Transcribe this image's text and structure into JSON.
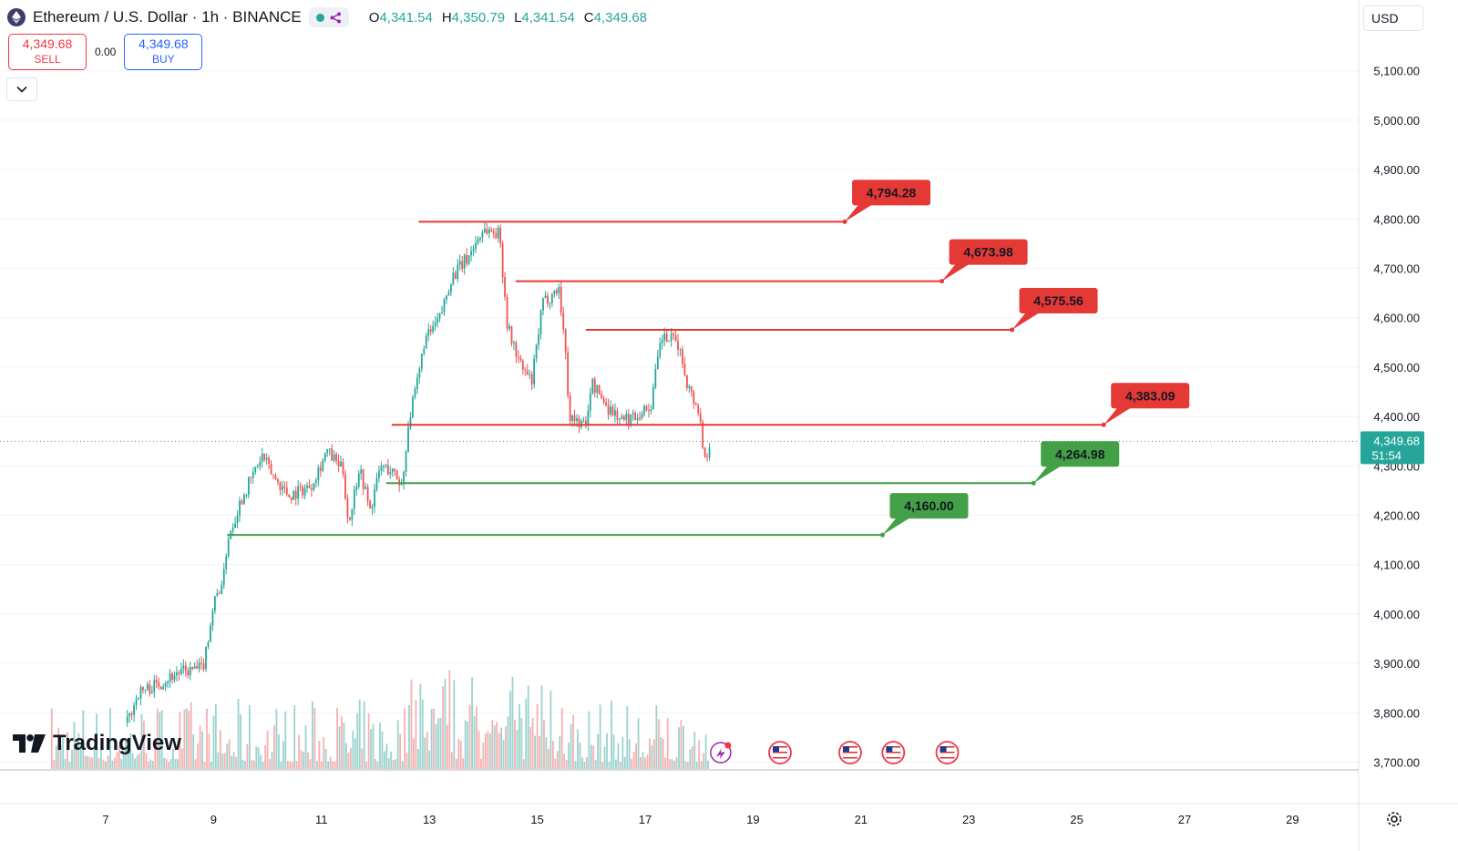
{
  "header": {
    "title": "Ethereum / U.S. Dollar · 1h · BINANCE",
    "open_label": "O",
    "open": "4,341.54",
    "high_label": "H",
    "high": "4,350.79",
    "low_label": "L",
    "low": "4,341.54",
    "close_label": "C",
    "close": "4,349.68"
  },
  "trade": {
    "sell_price": "4,349.68",
    "sell_label": "SELL",
    "spread": "0.00",
    "buy_price": "4,349.68",
    "buy_label": "BUY"
  },
  "currency": "USD",
  "brand": "TradingView",
  "price_label": {
    "price": "4,349.68",
    "countdown": "51:54"
  },
  "colors": {
    "up": "#26a69a",
    "down": "#ef5350",
    "resistance": "#e53935",
    "support": "#43a047",
    "price_label": "#26a69a"
  },
  "icons": [
    "ethereum-logo-icon",
    "chevron-down-icon",
    "tradingview-logo-icon",
    "us-flag-icon",
    "settings-icon"
  ],
  "chart_data": {
    "type": "candlestick",
    "interval": "1h",
    "yaxis": {
      "range": [
        3690,
        5150
      ],
      "ticks": [
        "5,100.00",
        "5,000.00",
        "4,900.00",
        "4,800.00",
        "4,700.00",
        "4,600.00",
        "4,500.00",
        "4,400.00",
        "4,300.00",
        "4,200.00",
        "4,100.00",
        "4,000.00",
        "3,900.00",
        "3,800.00",
        "3,700.00"
      ]
    },
    "xaxis": {
      "ticks": [
        "7",
        "9",
        "11",
        "13",
        "15",
        "17",
        "19",
        "21",
        "23",
        "25",
        "27",
        "29"
      ]
    },
    "price_path": [
      [
        7.4,
        3780
      ],
      [
        7.6,
        3840
      ],
      [
        8.0,
        3860
      ],
      [
        8.3,
        3880
      ],
      [
        8.8,
        3890
      ],
      [
        9.0,
        4020
      ],
      [
        9.2,
        4080
      ],
      [
        9.25,
        4150
      ],
      [
        9.35,
        4180
      ],
      [
        9.5,
        4230
      ],
      [
        9.9,
        4320
      ],
      [
        10.1,
        4280
      ],
      [
        10.4,
        4240
      ],
      [
        10.8,
        4260
      ],
      [
        11.1,
        4330
      ],
      [
        11.4,
        4290
      ],
      [
        11.5,
        4180
      ],
      [
        11.7,
        4300
      ],
      [
        11.9,
        4210
      ],
      [
        12.1,
        4300
      ],
      [
        12.3,
        4290
      ],
      [
        12.5,
        4260
      ],
      [
        12.6,
        4380
      ],
      [
        12.8,
        4480
      ],
      [
        12.9,
        4550
      ],
      [
        13.2,
        4600
      ],
      [
        13.4,
        4680
      ],
      [
        13.7,
        4720
      ],
      [
        14.0,
        4780
      ],
      [
        14.3,
        4770
      ],
      [
        14.45,
        4580
      ],
      [
        14.7,
        4500
      ],
      [
        14.9,
        4470
      ],
      [
        15.1,
        4630
      ],
      [
        15.4,
        4660
      ],
      [
        15.5,
        4560
      ],
      [
        15.6,
        4400
      ],
      [
        15.9,
        4380
      ],
      [
        16.0,
        4470
      ],
      [
        16.3,
        4420
      ],
      [
        16.6,
        4390
      ],
      [
        17.1,
        4420
      ],
      [
        17.3,
        4560
      ],
      [
        17.6,
        4550
      ],
      [
        17.8,
        4460
      ],
      [
        18.0,
        4410
      ],
      [
        18.1,
        4310
      ],
      [
        18.2,
        4349.68
      ]
    ],
    "levels": [
      {
        "kind": "resistance",
        "value": 4794.28,
        "label": "4,794.28",
        "from_day": 12.8,
        "to_day": 20.7
      },
      {
        "kind": "resistance",
        "value": 4673.98,
        "label": "4,673.98",
        "from_day": 14.6,
        "to_day": 22.5
      },
      {
        "kind": "resistance",
        "value": 4575.56,
        "label": "4,575.56",
        "from_day": 15.9,
        "to_day": 23.8
      },
      {
        "kind": "resistance",
        "value": 4383.09,
        "label": "4,383.09",
        "from_day": 12.3,
        "to_day": 25.5
      },
      {
        "kind": "support",
        "value": 4264.98,
        "label": "4,264.98",
        "from_day": 12.2,
        "to_day": 24.2
      },
      {
        "kind": "support",
        "value": 4160.0,
        "label": "4,160.00",
        "from_day": 9.25,
        "to_day": 21.4
      }
    ],
    "events_days": [
      18.4,
      19.5,
      20.8,
      21.6,
      22.6
    ]
  }
}
